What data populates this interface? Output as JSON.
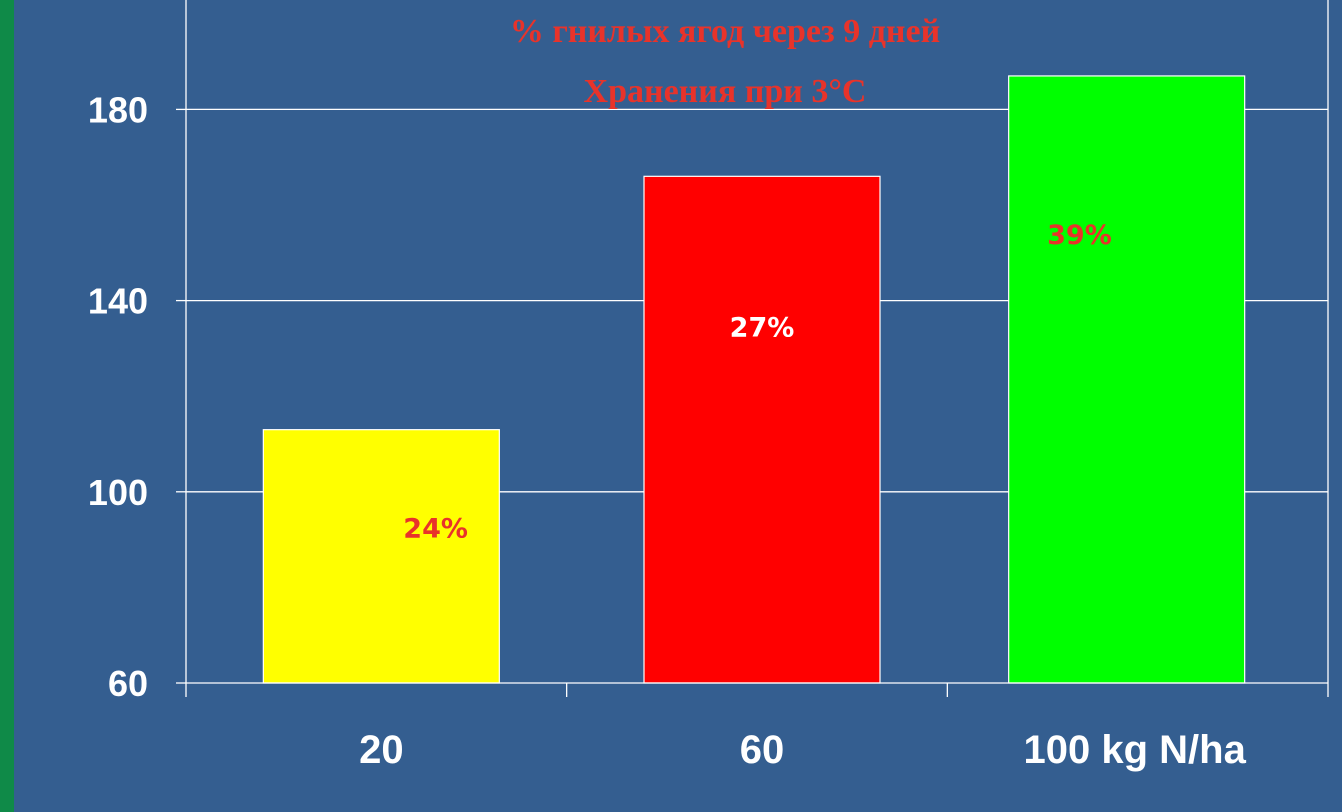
{
  "chart_data": {
    "type": "bar",
    "title_lines": [
      "% гнилых ягод через 9 дней",
      "Хранения при  3°C"
    ],
    "categories": [
      "20",
      "60",
      "100 kg N/ha"
    ],
    "values": [
      113,
      166,
      187
    ],
    "data_labels": [
      "24%",
      "27%",
      "39%"
    ],
    "bar_colors": [
      "#ffff00",
      "#ff0000",
      "#00ff00"
    ],
    "data_label_colors": [
      "#e8332a",
      "#ffffff",
      "#e8332a"
    ],
    "ylim": [
      60,
      190
    ],
    "yticks": [
      60,
      100,
      140,
      180
    ],
    "ytick_labels": [
      "60",
      "100",
      "140",
      "180"
    ],
    "grid": true,
    "xlabel": "",
    "ylabel": ""
  },
  "colors": {
    "background": "#345e90",
    "frame": "#0f8a48",
    "grid": "#ffffff",
    "title": "#e8332a"
  }
}
